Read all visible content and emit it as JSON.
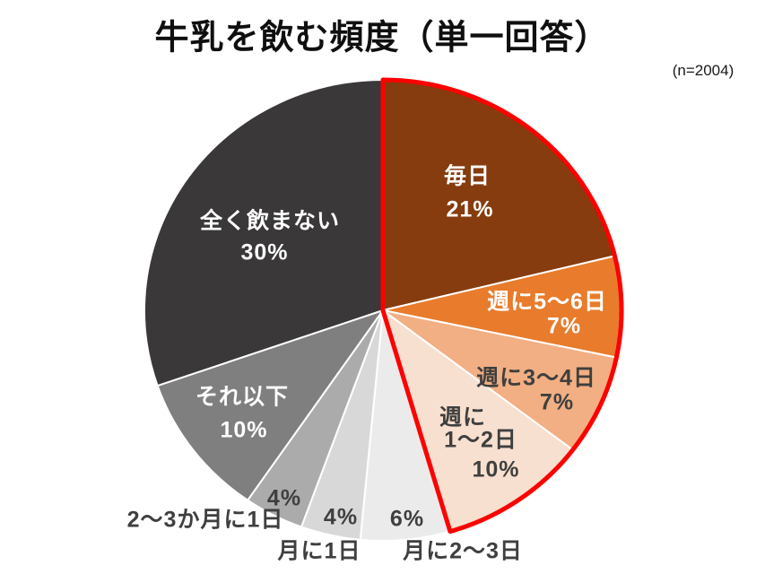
{
  "chart_data": {
    "type": "pie",
    "title": "牛乳を飲む頻度（単一回答）",
    "sample_note": "(n=2004)",
    "start_angle": "top",
    "direction": "clockwise",
    "slices": [
      {
        "label": "毎日",
        "value": 21,
        "pct_text": "21%",
        "color": "#863C0E",
        "text_color": "#ffffff"
      },
      {
        "label": "週に5～6日",
        "value": 7,
        "pct_text": "7%",
        "color": "#E87C2C",
        "text_color": "#ffffff"
      },
      {
        "label": "週に3～4日",
        "value": 7,
        "pct_text": "7%",
        "color": "#F1AF83",
        "text_color": "#3f3f3f"
      },
      {
        "label": "週に1～2日",
        "label_lines": [
          "週に",
          "1～2日"
        ],
        "value": 10,
        "pct_text": "10%",
        "color": "#F8E0D0",
        "text_color": "#3f3f3f"
      },
      {
        "label": "月に2～3日",
        "value": 6,
        "pct_text": "6%",
        "color": "#EBEBEB",
        "text_color": "#3f3f3f"
      },
      {
        "label": "月に1日",
        "value": 4,
        "pct_text": "4%",
        "color": "#D8D8D8",
        "text_color": "#3f3f3f"
      },
      {
        "label": "2～3か月に1日",
        "value": 4,
        "pct_text": "4%",
        "color": "#ABABAB",
        "text_color": "#3f3f3f"
      },
      {
        "label": "それ以下",
        "value": 10,
        "pct_text": "10%",
        "color": "#7F7F7F",
        "text_color": "#ffffff"
      },
      {
        "label": "全く飲まない",
        "value": 30,
        "pct_text": "30%",
        "color": "#3A3838",
        "text_color": "#ffffff"
      }
    ],
    "slice_separator_color": "#ffffff",
    "highlight_outline": {
      "color": "#FE0000",
      "covers": [
        "毎日",
        "週に5～6日",
        "週に3～4日",
        "週に1～2日"
      ],
      "covered_total_pct": 45
    }
  }
}
